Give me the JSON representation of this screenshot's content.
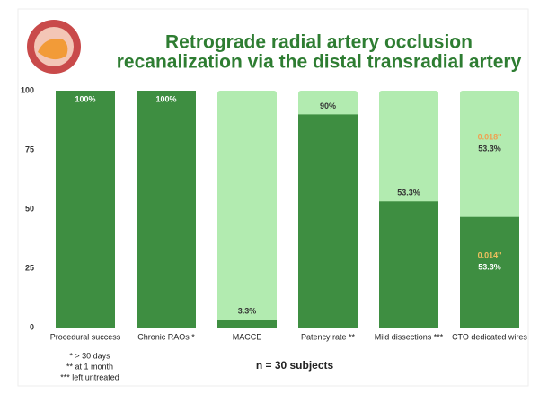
{
  "chart_data": {
    "type": "bar",
    "title": [
      "Retrograde radial artery occlusion",
      "recanalization via the distal transradial artery"
    ],
    "subtitle": "n = 30 subjects",
    "footnotes": [
      "* > 30 days",
      "** at 1 month",
      "*** left untreated"
    ],
    "categories": [
      "Procedural success",
      "Chronic RAOs *",
      "MACCE",
      "Patency rate **",
      "Mild dissections ***",
      "CTO dedicated wires"
    ],
    "values": [
      100,
      100,
      3.3,
      90,
      53.3,
      46.7
    ],
    "value_labels": [
      "100%",
      "100%",
      "3.3%",
      "90%",
      "53.3%",
      null
    ],
    "annotations": [
      "0.018''",
      "53.3%",
      "0.014''",
      "53.3%"
    ],
    "color": "#3e8e41",
    "track_color": "#b2ebb0",
    "ylim": [
      0,
      100
    ],
    "yticks": [
      0,
      25,
      50,
      75,
      100
    ],
    "grid": false
  }
}
